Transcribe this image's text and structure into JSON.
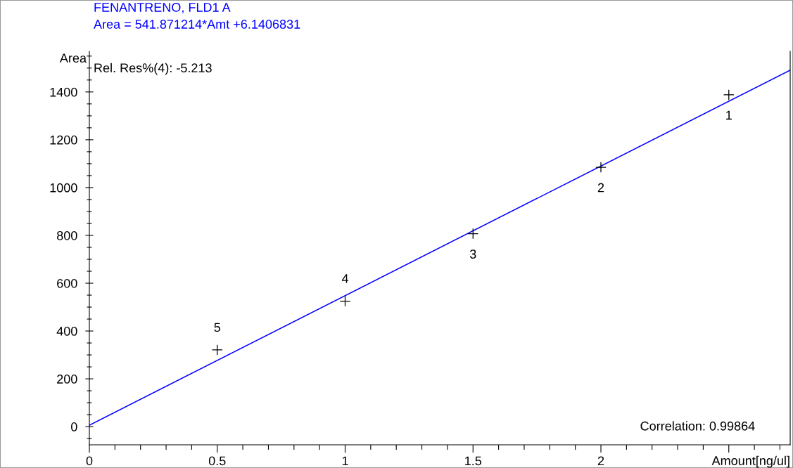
{
  "chart_data": {
    "type": "scatter",
    "title": "FENANTRENO, FLD1 A",
    "subtitle": "Area = 541.871214*Amt +6.1406831",
    "xlabel": "Amount[ng/ul]",
    "ylabel": "Area",
    "series": [
      {
        "color": "#000000",
        "marker": "cross",
        "x": [
          2.5,
          2,
          1.5,
          1,
          0.5
        ],
        "values": [
          1388,
          1085,
          807,
          525,
          321
        ]
      },
      {
        "type": "line",
        "color": "#0000ff",
        "marker": "none",
        "line_style": "solid",
        "x": [
          0,
          2.74
        ],
        "values": [
          6,
          1491
        ]
      }
    ],
    "annotations": [
      "Rel. Res%(4): -5.213",
      "Correlation: 0.99864",
      {
        "text": "1",
        "x": 2.5,
        "y": 1388
      },
      {
        "text": "2",
        "x": 2,
        "y": 1085
      },
      {
        "text": "3",
        "x": 1.5,
        "y": 807
      },
      {
        "text": "4",
        "x": 1,
        "y": 525
      },
      {
        "text": "5",
        "x": 0.5,
        "y": 321
      }
    ],
    "xlim": [
      0,
      2.74
    ],
    "ylim": [
      -76,
      1570
    ],
    "xticks": [
      0,
      0.5,
      1,
      1.5,
      2,
      {
        "value": 2.5,
        "label": null
      }
    ],
    "yticks": [
      0,
      200,
      400,
      600,
      800,
      1000,
      1200,
      1400
    ],
    "grid": false,
    "legend": false
  }
}
